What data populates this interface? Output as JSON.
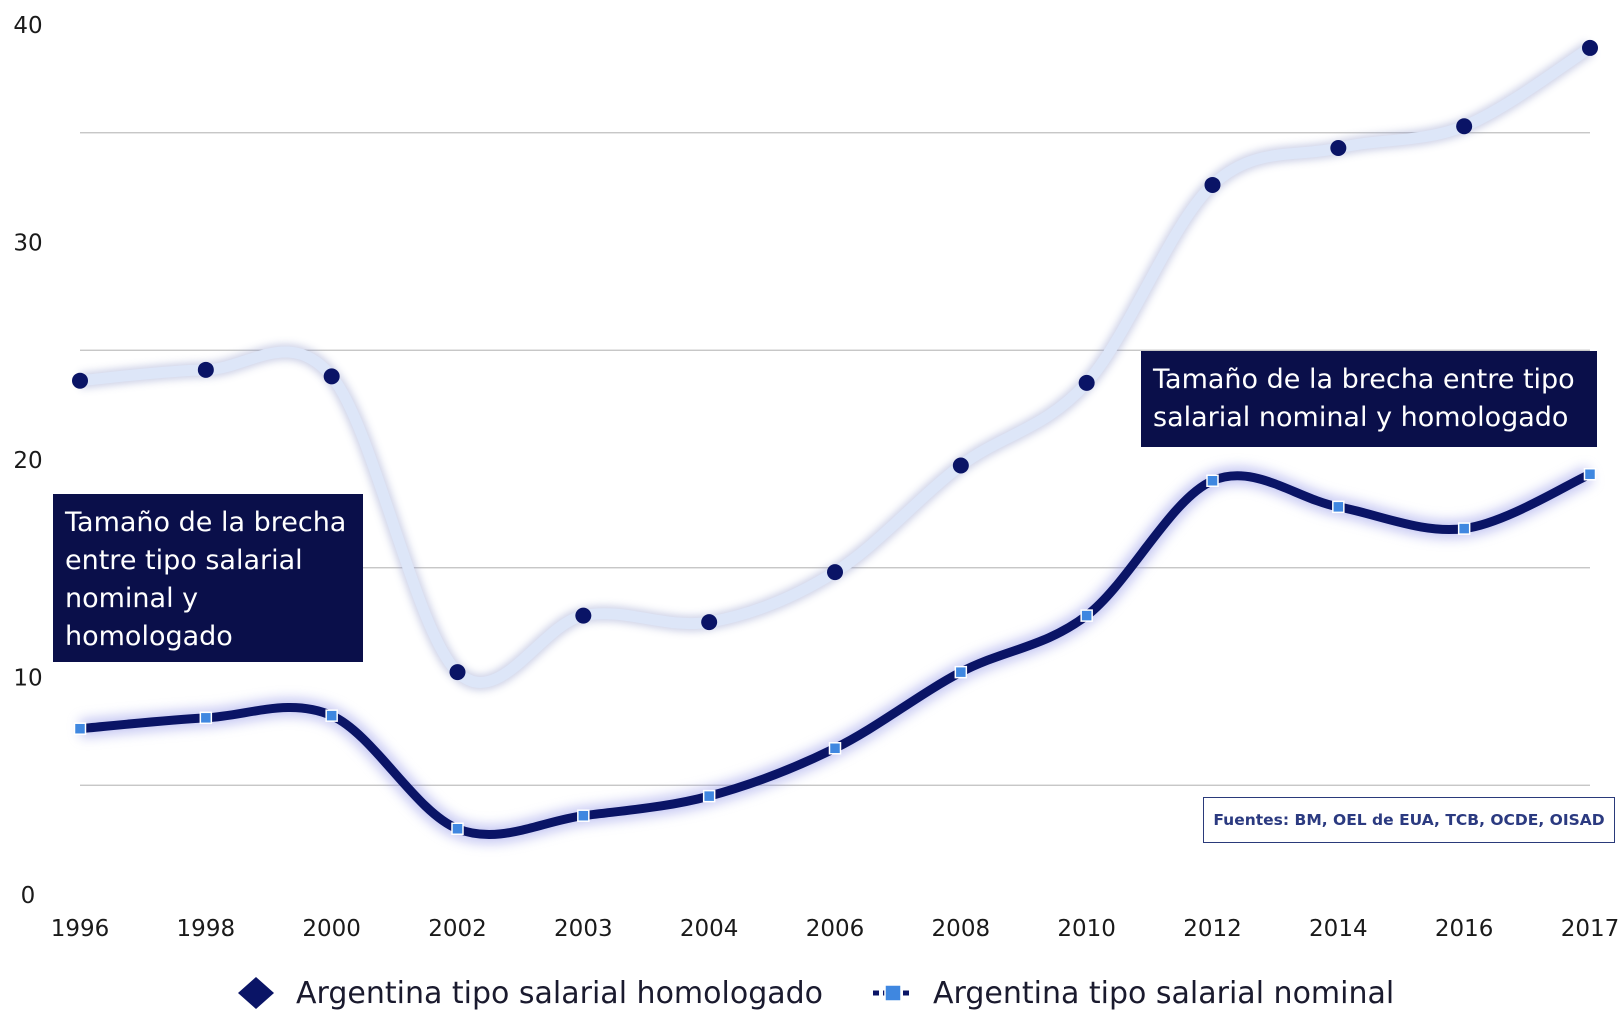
{
  "chart_data": {
    "type": "line",
    "categories": [
      "1996",
      "1998",
      "2000",
      "2002",
      "2003",
      "2004",
      "2006",
      "2008",
      "2010",
      "2012",
      "2014",
      "2016",
      "2017"
    ],
    "series": [
      {
        "name": "Argentina tipo salarial homologado",
        "values": [
          23.6,
          24.1,
          23.8,
          10.2,
          12.8,
          12.5,
          14.8,
          19.7,
          23.5,
          32.6,
          34.3,
          35.3,
          38.9
        ],
        "color": "#0a1466",
        "line_color": "#dde6f8",
        "marker": "diamond"
      },
      {
        "name": "Argentina tipo salarial nominal",
        "values": [
          7.6,
          8.1,
          8.2,
          3.0,
          3.6,
          4.5,
          6.7,
          10.2,
          12.8,
          19.0,
          17.8,
          16.8,
          19.3
        ],
        "color": "#0a1466",
        "marker_color": "#3f87e0",
        "marker": "square"
      }
    ],
    "yticks": [
      "0",
      "10",
      "20",
      "30",
      "40"
    ],
    "ylim": [
      0,
      40
    ],
    "gridlines": [
      5,
      15,
      25,
      35
    ],
    "annotations": [
      "Tamaño de la brecha entre tipo salarial nominal y homologado",
      "Tamaño de la brecha entre tipo salarial nominal y  homologado"
    ],
    "source": "Fuentes: BM, OEL de EUA, TCB, OCDE, OISAD",
    "legend_position": "bottom"
  }
}
